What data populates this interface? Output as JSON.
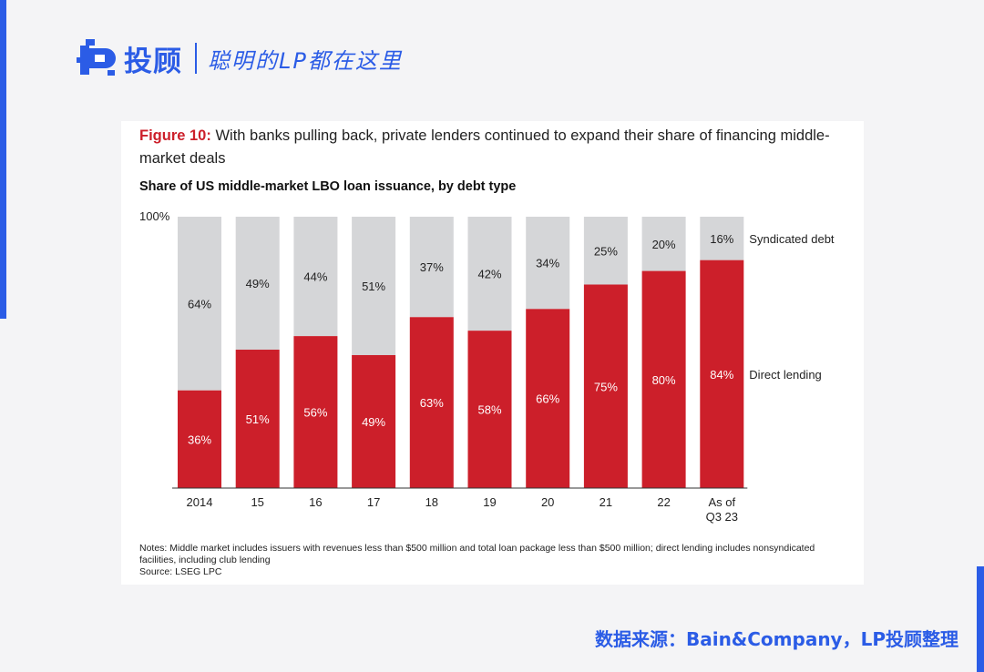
{
  "brand": {
    "name": "投顾",
    "slogan": "聪明的LP都在这里"
  },
  "figure": {
    "label": "Figure 10:",
    "title": "With banks pulling back, private lenders continued to expand their share of financing middle-market deals",
    "subtitle": "Share of US middle-market LBO loan issuance, by debt type",
    "notes": "Notes: Middle market includes issuers with revenues less than $500 million and total loan package less than $500 million; direct lending includes nonsyndicated facilities, including club lending",
    "source": "Source: LSEG LPC"
  },
  "chart_data": {
    "type": "bar",
    "stacked": true,
    "percent_stacked": true,
    "categories": [
      "2014",
      "15",
      "16",
      "17",
      "18",
      "19",
      "20",
      "21",
      "22",
      "As of Q3 23"
    ],
    "series": [
      {
        "name": "Direct lending",
        "values": [
          36,
          51,
          56,
          49,
          63,
          58,
          66,
          75,
          80,
          84
        ],
        "color": "#cc1f2a",
        "label_color": "#ffffff"
      },
      {
        "name": "Syndicated debt",
        "values": [
          64,
          49,
          44,
          51,
          37,
          42,
          34,
          25,
          20,
          16
        ],
        "color": "#d5d6d8",
        "label_color": "#222222"
      }
    ],
    "y_axis_label": "100%",
    "ylim": [
      0,
      100
    ],
    "legend_placement": "right"
  },
  "footer": {
    "source_text": "数据来源：Bain&Company，LP投顾整理"
  },
  "colors": {
    "brand_blue": "#2b5ce6",
    "accent_red": "#cc1f2a"
  }
}
